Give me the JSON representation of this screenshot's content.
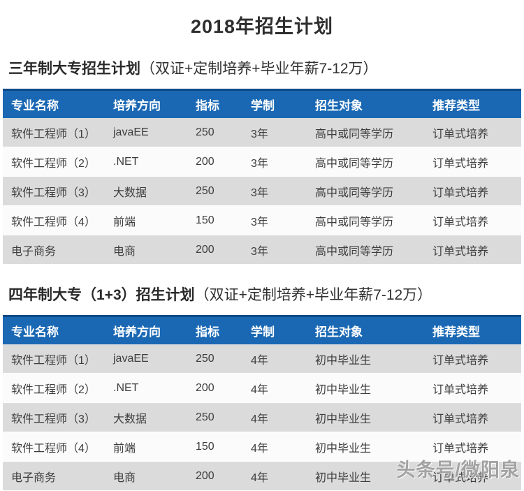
{
  "page": {
    "title": "2018年招生计划"
  },
  "colors": {
    "header_blue": "#1a68b4",
    "header_blue_dark_edge": "#0d4a86",
    "row_gray": "#dbdbdb",
    "row_white": "#fbfbfb",
    "header_text": "#ffffff",
    "body_text": "#3d3d3d"
  },
  "sections": [
    {
      "heading_main": "三年制大专招生计划",
      "heading_note": "（双证+定制培养+毕业年薪7-12万）",
      "table": {
        "columns": [
          "专业名称",
          "培养方向",
          "指标",
          "学制",
          "招生对象",
          "推荐类型"
        ],
        "rows": [
          [
            "软件工程师（1）",
            "javaEE",
            "250",
            "3年",
            "高中或同等学历",
            "订单式培养"
          ],
          [
            "软件工程师（2）",
            ".NET",
            "200",
            "3年",
            "高中或同等学历",
            "订单式培养"
          ],
          [
            "软件工程师（3）",
            "大数据",
            "250",
            "3年",
            "高中或同等学历",
            "订单式培养"
          ],
          [
            "软件工程师（4）",
            "前端",
            "150",
            "3年",
            "高中或同等学历",
            "订单式培养"
          ],
          [
            "电子商务",
            "电商",
            "200",
            "3年",
            "高中或同等学历",
            "订单式培养"
          ]
        ]
      }
    },
    {
      "heading_main": "四年制大专（1+3）招生计划",
      "heading_note": "（双证+定制培养+毕业年薪7-12万）",
      "table": {
        "columns": [
          "专业名称",
          "培养方向",
          "指标",
          "学制",
          "招生对象",
          "推荐类型"
        ],
        "rows": [
          [
            "软件工程师（1）",
            "javaEE",
            "250",
            "4年",
            "初中毕业生",
            "订单式培养"
          ],
          [
            "软件工程师（2）",
            ".NET",
            "200",
            "4年",
            "初中毕业生",
            "订单式培养"
          ],
          [
            "软件工程师（3）",
            "大数据",
            "250",
            "4年",
            "初中毕业生",
            "订单式培养"
          ],
          [
            "软件工程师（4）",
            "前端",
            "150",
            "4年",
            "初中毕业生",
            "订单式培养"
          ],
          [
            "电子商务",
            "电商",
            "200",
            "4年",
            "初中毕业生",
            "订单式培养"
          ]
        ]
      }
    }
  ],
  "watermark": {
    "text": "头条号/微阳泉"
  }
}
